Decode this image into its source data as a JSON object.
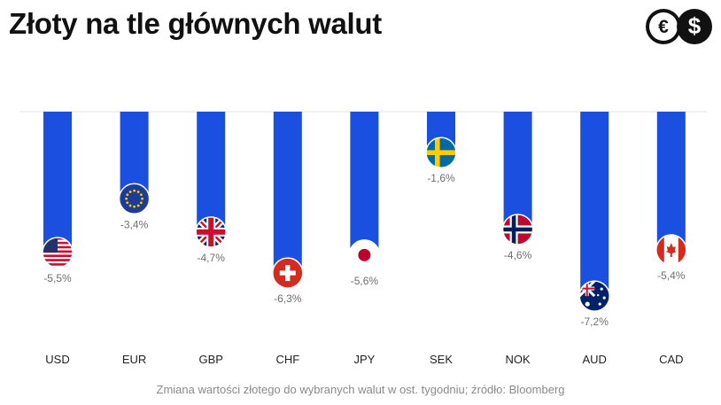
{
  "title": "Złoty na tle głównych walut",
  "logo": {
    "icon": "euro-dollar-icon",
    "symbols": [
      "€",
      "$"
    ]
  },
  "source": "Zmiana wartości złotego do wybranych walut w ost. tygodniu; źródło: Bloomberg",
  "chart_data": {
    "type": "bar",
    "orientation": "vertical-downward",
    "categories": [
      "USD",
      "EUR",
      "GBP",
      "CHF",
      "JPY",
      "SEK",
      "NOK",
      "AUD",
      "CAD"
    ],
    "values": [
      -5.5,
      -3.4,
      -4.7,
      -6.3,
      -5.6,
      -1.6,
      -4.6,
      -7.2,
      -5.4
    ],
    "labels": [
      "-5,5%",
      "-3,4%",
      "-4,7%",
      "-6,3%",
      "-5,6%",
      "-1,6%",
      "-4,6%",
      "-7,2%",
      "-5,4%"
    ],
    "flags": [
      "us-flag-icon",
      "eu-flag-icon",
      "uk-flag-icon",
      "ch-flag-icon",
      "jp-flag-icon",
      "se-flag-icon",
      "no-flag-icon",
      "au-flag-icon",
      "ca-flag-icon"
    ],
    "bar_color": "#1a4fe0",
    "grid": false,
    "legend": "none"
  }
}
